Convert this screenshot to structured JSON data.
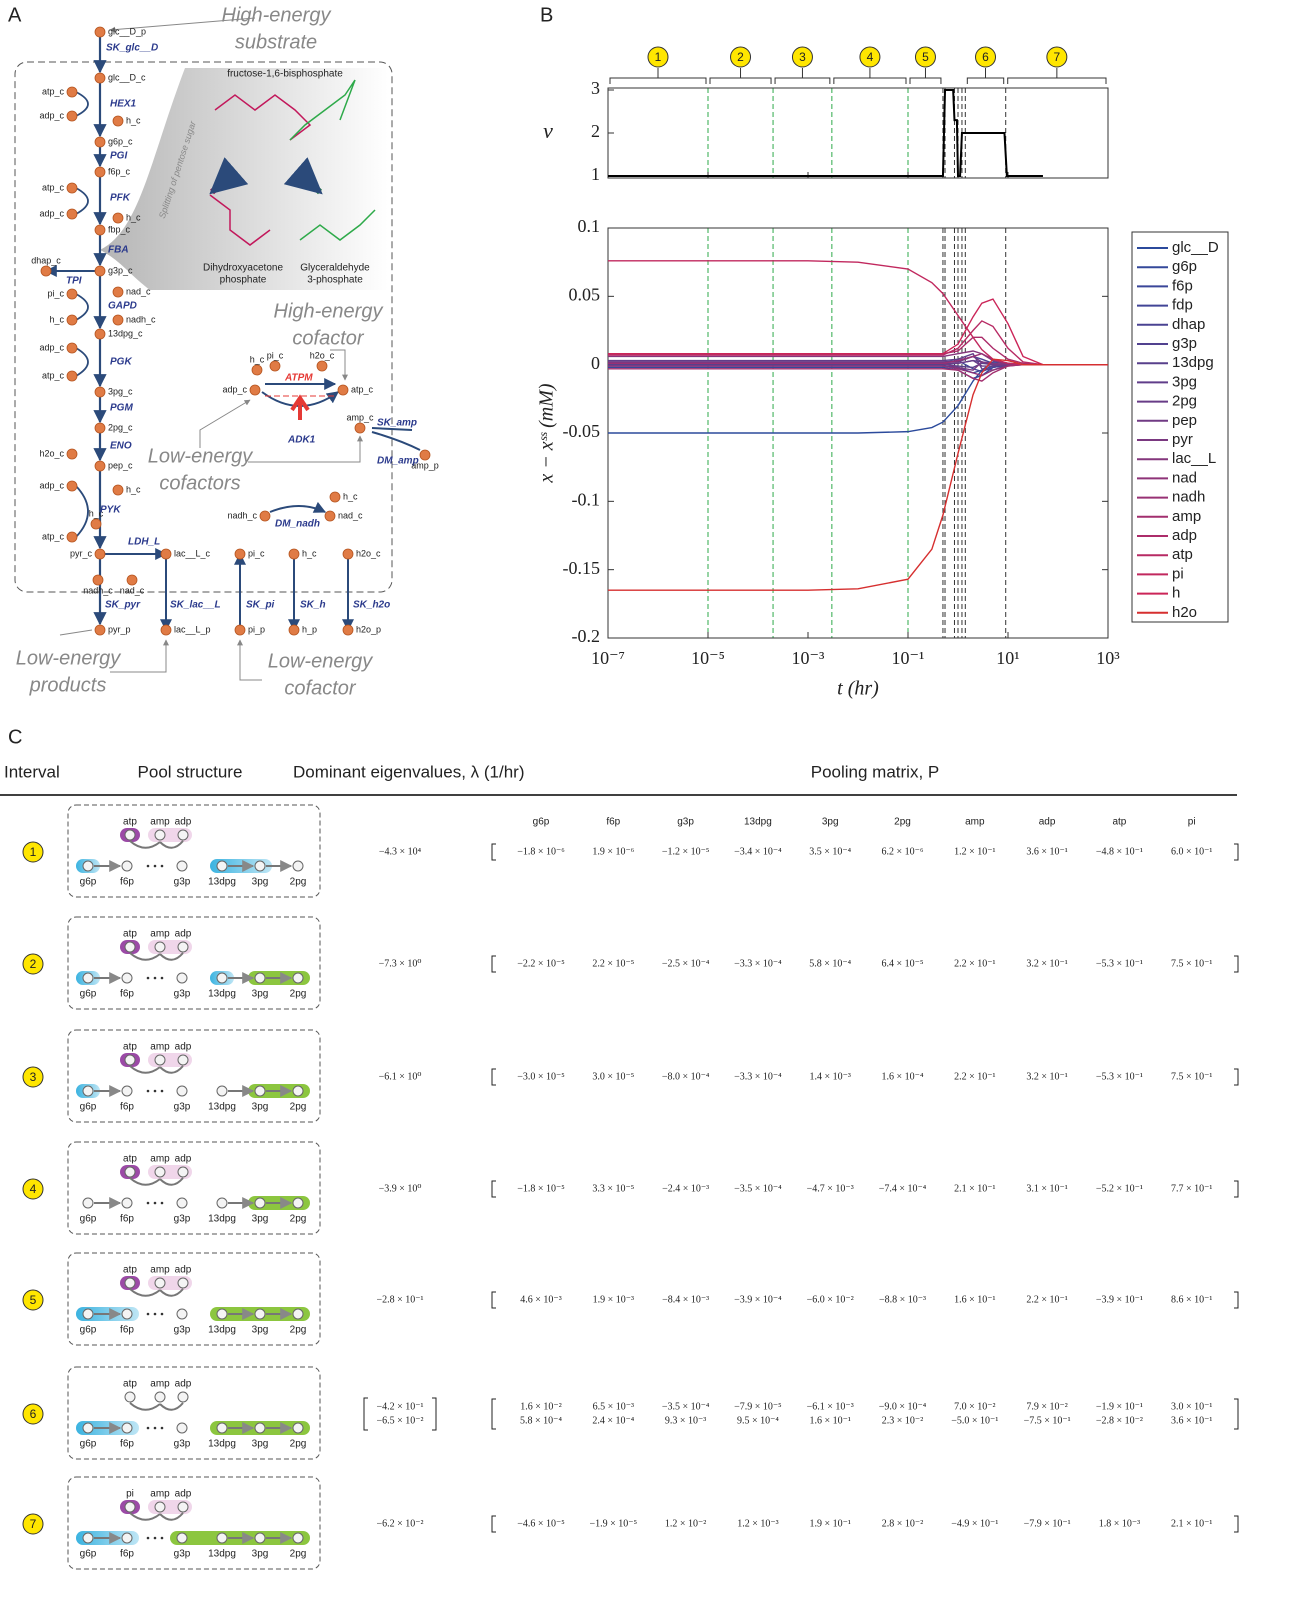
{
  "panels": {
    "a": "A",
    "b": "B",
    "c": "C"
  },
  "diagram": {
    "notes": [
      [
        "High-energy",
        "substrate"
      ],
      [
        "High-energy",
        "cofactor"
      ],
      [
        "Low-energy",
        "cofactors"
      ],
      [
        "Low-energy",
        "products"
      ],
      [
        "Low-energy",
        "cofactor"
      ]
    ],
    "structure_labels": {
      "fbp": "fructose-1,6-bisphosphate",
      "split": "Splitting of pentose sugar",
      "dhap": [
        "Dihydroxyacetone",
        "phosphate"
      ],
      "g3p": [
        "Glyceraldehyde",
        "3-phosphate"
      ]
    },
    "metabolites": [
      "glc__D_p",
      "glc__D_c",
      "atp_c",
      "adp_c",
      "h_c",
      "g6p_c",
      "f6p_c",
      "atp_c",
      "adp_c",
      "h_c",
      "fbp_c",
      "dhap_c",
      "g3p_c",
      "pi_c",
      "nad_c",
      "h_c",
      "nadh_c",
      "13dpg_c",
      "adp_c",
      "atp_c",
      "3pg_c",
      "2pg_c",
      "h2o_c",
      "pep_c",
      "adp_c",
      "h_c",
      "h_c",
      "atp_c",
      "pyr_c",
      "nadh_c",
      "nad_c",
      "lac__L_c",
      "pyr_p",
      "lac__L_p",
      "pi_c",
      "h_c",
      "h2o_c",
      "pi_p",
      "h_p",
      "h2o_p",
      "h_c",
      "pi_c",
      "h2o_c",
      "adp_c",
      "atp_c",
      "amp_c",
      "amp_p",
      "h_c",
      "nadh_c",
      "nad_c"
    ],
    "reactions": [
      "SK_glc__D",
      "HEX1",
      "PGI",
      "PFK",
      "FBA",
      "TPI",
      "GAPD",
      "PGK",
      "PGM",
      "ENO",
      "PYK",
      "LDH_L",
      "SK_pyr",
      "SK_lac__L",
      "SK_pi",
      "SK_h",
      "SK_h2o",
      "ATPM",
      "ADK1",
      "SK_amp",
      "DM_amp",
      "DM_nadh"
    ]
  },
  "chart_data": [
    {
      "type": "line",
      "ylabel": "ν",
      "x": [
        1e-07,
        0.5,
        0.55,
        0.8,
        0.85,
        0.95,
        1.0,
        1.1,
        1.2,
        8.5,
        9.5,
        50
      ],
      "values": [
        1,
        1,
        3,
        3,
        2.3,
        2.3,
        1,
        1,
        2,
        2,
        1,
        1
      ],
      "color": "#000000",
      "xlim": [
        1e-07,
        1000
      ],
      "log_x": true,
      "ylim": [
        1,
        3
      ],
      "yticks": [
        1,
        2,
        3
      ],
      "xticks": [
        1e-07,
        1e-05,
        0.001,
        0.1,
        10,
        1000
      ],
      "intervals": [
        {
          "label": "1",
          "range": [
            1e-07,
            1e-05
          ]
        },
        {
          "label": "2",
          "range": [
            1e-05,
            0.0002
          ]
        },
        {
          "label": "3",
          "range": [
            0.0002,
            0.003
          ]
        },
        {
          "label": "4",
          "range": [
            0.003,
            0.1
          ]
        },
        {
          "label": "5",
          "range": [
            0.1,
            0.5
          ]
        },
        {
          "label": "6",
          "range": [
            1.4,
            9
          ]
        },
        {
          "label": "7",
          "range": [
            9,
            1000
          ]
        }
      ]
    },
    {
      "type": "line",
      "xlabel": "t (hr)",
      "ylabel": "x − xˢˢ (mM)",
      "log_x": true,
      "xlim": [
        1e-07,
        1000
      ],
      "ylim": [
        -0.2,
        0.1
      ],
      "yticks": [
        -0.2,
        -0.15,
        -0.1,
        -0.05,
        0,
        0.05,
        0.1
      ],
      "xticks": [
        {
          "value": 1e-07,
          "label": "10⁻⁷"
        },
        {
          "value": 1e-05,
          "label": "10⁻⁵"
        },
        {
          "value": 0.001,
          "label": "10⁻³"
        },
        {
          "value": 0.1,
          "label": "10⁻¹"
        },
        {
          "value": 10,
          "label": "10¹"
        },
        {
          "value": 1000,
          "label": "10³"
        }
      ],
      "vlines_green": [
        1e-05,
        0.0002,
        0.003,
        0.1
      ],
      "vlines_black": [
        0.5,
        0.55,
        0.85,
        1.0,
        1.2,
        1.4,
        9
      ],
      "legend": "right",
      "x": [
        1e-07,
        1e-05,
        0.001,
        0.01,
        0.1,
        0.3,
        0.5,
        1,
        2,
        3,
        5,
        10,
        20,
        50,
        100,
        1000
      ],
      "series": [
        {
          "name": "glc__D",
          "color": "#2b4a9c",
          "values": [
            -0.05,
            -0.05,
            -0.05,
            -0.05,
            -0.049,
            -0.046,
            -0.042,
            -0.03,
            -0.012,
            -0.004,
            0.002,
            0.001,
            0,
            0,
            0,
            0
          ]
        },
        {
          "name": "g6p",
          "color": "#34489a",
          "values": [
            -0.002,
            -0.002,
            -0.002,
            -0.002,
            -0.002,
            -0.002,
            -0.002,
            -0.004,
            -0.01,
            -0.008,
            -0.002,
            0,
            0,
            0,
            0,
            0
          ]
        },
        {
          "name": "f6p",
          "color": "#3a4699",
          "values": [
            -0.001,
            -0.001,
            -0.001,
            -0.001,
            -0.001,
            -0.001,
            -0.001,
            -0.002,
            -0.006,
            -0.004,
            -0.001,
            0,
            0,
            0,
            0,
            0
          ]
        },
        {
          "name": "fdp",
          "color": "#414596",
          "values": [
            0.001,
            0.001,
            0.001,
            0.001,
            0.001,
            0.001,
            0.001,
            0.003,
            -0.003,
            -0.005,
            -0.002,
            0,
            0,
            0,
            0,
            0
          ]
        },
        {
          "name": "dhap",
          "color": "#4a4392",
          "values": [
            0.002,
            0.002,
            0.002,
            0.002,
            0.002,
            0.002,
            0.002,
            0.003,
            0.006,
            0.004,
            0.001,
            0,
            0,
            0,
            0,
            0
          ]
        },
        {
          "name": "g3p",
          "color": "#51418f",
          "values": [
            0,
            0,
            0,
            0,
            0,
            0,
            0,
            0.001,
            0.003,
            0.002,
            0,
            0,
            0,
            0,
            0,
            0
          ]
        },
        {
          "name": "13dpg",
          "color": "#58408c",
          "values": [
            0,
            0,
            0,
            0,
            0,
            0,
            0,
            -0.001,
            -0.002,
            0.001,
            0,
            0,
            0,
            0,
            0,
            0
          ]
        },
        {
          "name": "3pg",
          "color": "#603e8a",
          "values": [
            0.003,
            0.003,
            0.003,
            0.003,
            0.003,
            0.003,
            0.003,
            0.004,
            0.008,
            -0.003,
            -0.004,
            0,
            0,
            0,
            0,
            0
          ]
        },
        {
          "name": "2pg",
          "color": "#683c87",
          "values": [
            0.001,
            0.001,
            0.001,
            0.001,
            0.001,
            0.001,
            0.001,
            0.001,
            0.003,
            -0.001,
            -0.001,
            0,
            0,
            0,
            0,
            0
          ]
        },
        {
          "name": "pep",
          "color": "#703a84",
          "values": [
            0.002,
            0.002,
            0.002,
            0.002,
            0.002,
            0.002,
            0.002,
            0.002,
            0.006,
            0.002,
            0,
            0,
            0,
            0,
            0,
            0
          ]
        },
        {
          "name": "pyr",
          "color": "#7a3880",
          "values": [
            0.001,
            0.001,
            0.001,
            0.001,
            0.001,
            0.001,
            0.001,
            -0.002,
            -0.004,
            0.002,
            0.001,
            0,
            0,
            0,
            0,
            0
          ]
        },
        {
          "name": "lac__L",
          "color": "#84367c",
          "values": [
            0.006,
            0.006,
            0.006,
            0.006,
            0.006,
            0.006,
            0.006,
            0.008,
            0.01,
            0.008,
            0.003,
            0,
            0,
            0,
            0,
            0
          ]
        },
        {
          "name": "nad",
          "color": "#8e3378",
          "values": [
            -0.001,
            -0.001,
            -0.001,
            -0.001,
            -0.001,
            -0.001,
            -0.001,
            -0.003,
            -0.006,
            -0.008,
            -0.004,
            -0.001,
            0,
            0,
            0,
            0
          ]
        },
        {
          "name": "nadh",
          "color": "#983174",
          "values": [
            0.001,
            0.001,
            0.001,
            0.001,
            0.001,
            0.001,
            0.001,
            0.003,
            0.006,
            0.008,
            0.004,
            0.001,
            0,
            0,
            0,
            0
          ]
        },
        {
          "name": "amp",
          "color": "#a22f6f",
          "values": [
            -0.003,
            -0.003,
            -0.003,
            -0.003,
            -0.003,
            -0.003,
            -0.003,
            -0.004,
            -0.01,
            -0.012,
            -0.006,
            -0.001,
            0,
            0,
            0,
            0
          ]
        },
        {
          "name": "adp",
          "color": "#ac2c6a",
          "values": [
            0.008,
            0.008,
            0.008,
            0.008,
            0.008,
            0.008,
            0.008,
            0.01,
            0.02,
            0.02,
            0.012,
            0.004,
            0.001,
            0,
            0,
            0
          ]
        },
        {
          "name": "atp",
          "color": "#b72a64",
          "values": [
            0.007,
            0.007,
            0.007,
            0.007,
            0.007,
            0.007,
            0.007,
            0.012,
            0.025,
            0.032,
            0.028,
            0.012,
            0.002,
            0,
            0,
            0
          ]
        },
        {
          "name": "pi",
          "color": "#c1285e",
          "values": [
            0.076,
            0.076,
            0.076,
            0.075,
            0.07,
            0.06,
            0.052,
            0.036,
            0.02,
            0.011,
            0.004,
            0.001,
            0,
            0,
            0,
            0
          ]
        },
        {
          "name": "h",
          "color": "#cb2558",
          "values": [
            0.008,
            0.008,
            0.008,
            0.008,
            0.008,
            0.008,
            0.008,
            0.015,
            0.035,
            0.045,
            0.048,
            0.03,
            0.006,
            0,
            0,
            0
          ]
        },
        {
          "name": "h2o",
          "color": "#d62f2f",
          "values": [
            -0.165,
            -0.165,
            -0.165,
            -0.164,
            -0.157,
            -0.135,
            -0.11,
            -0.065,
            -0.022,
            -0.006,
            0.004,
            0.003,
            0,
            0,
            0,
            0
          ]
        }
      ]
    }
  ],
  "table": {
    "headers": [
      "Interval",
      "Pool structure",
      "Dominant eigenvalues, λ (1/hr)",
      "Pooling matrix, P"
    ],
    "columns": [
      "g6p",
      "f6p",
      "g3p",
      "13dpg",
      "3pg",
      "2pg",
      "amp",
      "adp",
      "atp",
      "pi"
    ],
    "rows": [
      {
        "interval": "1",
        "pool_top": [
          "atp",
          "amp",
          "adp"
        ],
        "pool_bottom": [
          "g6p",
          "f6p",
          "g3p",
          "13dpg",
          "3pg",
          "2pg"
        ],
        "eigenvalues": [
          "−4.3 × 10⁴"
        ],
        "matrix": [
          [
            "−1.8 × 10⁻⁶",
            "1.9 × 10⁻⁶",
            "−1.2 × 10⁻⁵",
            "−3.4 × 10⁻⁴",
            "3.5 × 10⁻⁴",
            "6.2 × 10⁻⁶",
            "1.2 × 10⁻¹",
            "3.6 × 10⁻¹",
            "−4.8 × 10⁻¹",
            "6.0 × 10⁻¹"
          ]
        ]
      },
      {
        "interval": "2",
        "pool_top": [
          "atp",
          "amp",
          "adp"
        ],
        "pool_bottom": [
          "g6p",
          "f6p",
          "g3p",
          "13dpg",
          "3pg",
          "2pg"
        ],
        "eigenvalues": [
          "−7.3 × 10⁰"
        ],
        "matrix": [
          [
            "−2.2 × 10⁻⁵",
            "2.2 × 10⁻⁵",
            "−2.5 × 10⁻⁴",
            "−3.3 × 10⁻⁴",
            "5.8 × 10⁻⁴",
            "6.4 × 10⁻⁵",
            "2.2 × 10⁻¹",
            "3.2 × 10⁻¹",
            "−5.3 × 10⁻¹",
            "7.5 × 10⁻¹"
          ]
        ]
      },
      {
        "interval": "3",
        "pool_top": [
          "atp",
          "amp",
          "adp"
        ],
        "pool_bottom": [
          "g6p",
          "f6p",
          "g3p",
          "13dpg",
          "3pg",
          "2pg"
        ],
        "eigenvalues": [
          "−6.1 × 10⁰"
        ],
        "matrix": [
          [
            "−3.0 × 10⁻⁵",
            "3.0 × 10⁻⁵",
            "−8.0 × 10⁻⁴",
            "−3.3 × 10⁻⁴",
            "1.4 × 10⁻³",
            "1.6 × 10⁻⁴",
            "2.2 × 10⁻¹",
            "3.2 × 10⁻¹",
            "−5.3 × 10⁻¹",
            "7.5 × 10⁻¹"
          ]
        ]
      },
      {
        "interval": "4",
        "pool_top": [
          "atp",
          "amp",
          "adp"
        ],
        "pool_bottom": [
          "g6p",
          "f6p",
          "g3p",
          "13dpg",
          "3pg",
          "2pg"
        ],
        "eigenvalues": [
          "−3.9 × 10⁰"
        ],
        "matrix": [
          [
            "−1.8 × 10⁻⁵",
            "3.3 × 10⁻⁵",
            "−2.4 × 10⁻³",
            "−3.5 × 10⁻⁴",
            "−4.7 × 10⁻³",
            "−7.4 × 10⁻⁴",
            "2.1 × 10⁻¹",
            "3.1 × 10⁻¹",
            "−5.2 × 10⁻¹",
            "7.7 × 10⁻¹"
          ]
        ]
      },
      {
        "interval": "5",
        "pool_top": [
          "atp",
          "amp",
          "adp"
        ],
        "pool_bottom": [
          "g6p",
          "f6p",
          "g3p",
          "13dpg",
          "3pg",
          "2pg"
        ],
        "eigenvalues": [
          "−2.8 × 10⁻¹"
        ],
        "matrix": [
          [
            "4.6 × 10⁻³",
            "1.9 × 10⁻³",
            "−8.4 × 10⁻³",
            "−3.9 × 10⁻⁴",
            "−6.0 × 10⁻²",
            "−8.8 × 10⁻³",
            "1.6 × 10⁻¹",
            "2.2 × 10⁻¹",
            "−3.9 × 10⁻¹",
            "8.6 × 10⁻¹"
          ]
        ]
      },
      {
        "interval": "6",
        "pool_top": [
          "atp",
          "amp",
          "adp"
        ],
        "pool_bottom": [
          "g6p",
          "f6p",
          "g3p",
          "13dpg",
          "3pg",
          "2pg"
        ],
        "eigenvalues": [
          "−4.2 × 10⁻¹",
          "−6.5 × 10⁻²"
        ],
        "matrix": [
          [
            "1.6 × 10⁻²",
            "6.5 × 10⁻³",
            "−3.5 × 10⁻⁴",
            "−7.9 × 10⁻⁵",
            "−6.1 × 10⁻³",
            "−9.0 × 10⁻⁴",
            "7.0 × 10⁻²",
            "7.9 × 10⁻²",
            "−1.9 × 10⁻¹",
            "3.0 × 10⁻¹"
          ],
          [
            "5.8 × 10⁻⁴",
            "2.4 × 10⁻⁴",
            "9.3 × 10⁻³",
            "9.5 × 10⁻⁴",
            "1.6 × 10⁻¹",
            "2.3 × 10⁻²",
            "−5.0 × 10⁻¹",
            "−7.5 × 10⁻¹",
            "−2.8 × 10⁻²",
            "3.6 × 10⁻¹"
          ]
        ]
      },
      {
        "interval": "7",
        "pool_top": [
          "pi",
          "amp",
          "adp"
        ],
        "pool_bottom": [
          "g6p",
          "f6p",
          "g3p",
          "13dpg",
          "3pg",
          "2pg"
        ],
        "eigenvalues": [
          "−6.2 × 10⁻²"
        ],
        "matrix": [
          [
            "−4.6 × 10⁻⁵",
            "−1.9 × 10⁻⁵",
            "1.2 × 10⁻²",
            "1.2 × 10⁻³",
            "1.9 × 10⁻¹",
            "2.8 × 10⁻²",
            "−4.9 × 10⁻¹",
            "−7.9 × 10⁻¹",
            "1.8 × 10⁻³",
            "2.1 × 10⁻¹"
          ]
        ]
      }
    ]
  }
}
